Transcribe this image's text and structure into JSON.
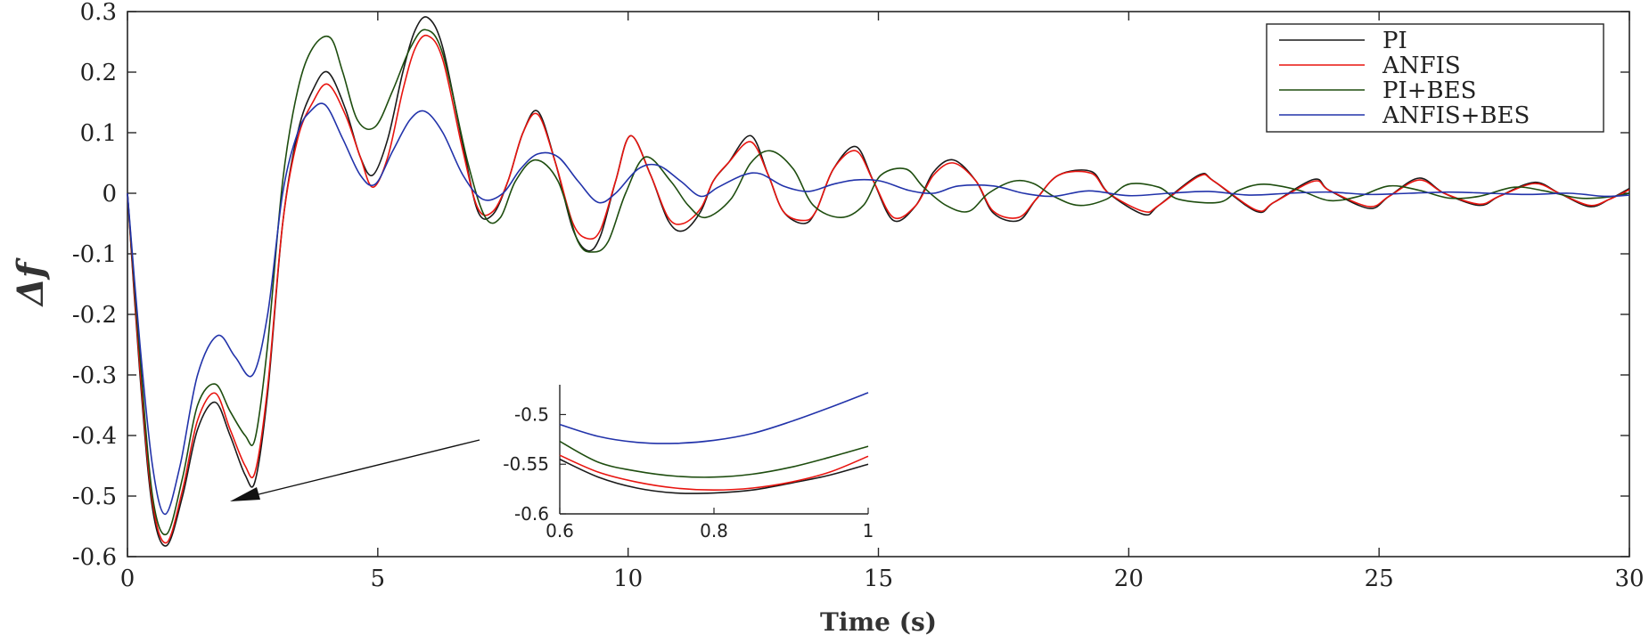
{
  "chart_data": {
    "type": "line",
    "title": "",
    "xlabel": "Time (s)",
    "ylabel": "Δf",
    "xlim": [
      0,
      30
    ],
    "ylim": [
      -0.6,
      0.3
    ],
    "xticks": [
      0,
      5,
      10,
      15,
      20,
      25,
      30
    ],
    "xtick_labels": [
      "0",
      "5",
      "10",
      "15",
      "20",
      "25",
      "30"
    ],
    "yticks": [
      0.3,
      0.2,
      0.1,
      0,
      -0.1,
      -0.2,
      -0.3,
      -0.4,
      -0.5,
      -0.6
    ],
    "ytick_labels": [
      "0.3",
      "0.2",
      "0.1",
      "0",
      "-0.1",
      "-0.2",
      "-0.3",
      "-0.4",
      "-0.5",
      "-0.6"
    ],
    "legend_position": "top-right",
    "series": [
      {
        "name": "PI",
        "color": "#1a1a1a",
        "x": [
          0,
          0.25,
          0.5,
          0.78,
          1.1,
          1.4,
          1.75,
          2.05,
          2.35,
          2.55,
          2.8,
          3.1,
          3.4,
          3.7,
          4.0,
          4.35,
          4.65,
          4.9,
          5.2,
          5.5,
          5.75,
          6.0,
          6.3,
          6.7,
          7.0,
          7.3,
          7.6,
          7.9,
          8.2,
          8.55,
          8.9,
          9.2,
          9.45,
          9.75,
          10.05,
          10.45,
          10.8,
          11.1,
          11.45,
          11.7,
          12.0,
          12.45,
          12.8,
          13.1,
          13.5,
          13.75,
          14.1,
          14.55,
          14.9,
          15.3,
          15.75,
          16.1,
          16.5,
          16.95,
          17.3,
          17.8,
          18.15,
          18.6,
          19.25,
          19.6,
          20.3,
          20.6,
          21.4,
          21.7,
          22.55,
          22.9,
          23.7,
          24.0,
          24.8,
          25.2,
          25.8,
          26.3,
          27.0,
          27.4,
          28.1,
          28.6,
          29.2,
          29.6,
          30
        ],
        "values": [
          0,
          -0.3,
          -0.52,
          -0.582,
          -0.5,
          -0.39,
          -0.345,
          -0.4,
          -0.465,
          -0.475,
          -0.33,
          -0.05,
          0.1,
          0.17,
          0.2,
          0.14,
          0.06,
          0.03,
          0.09,
          0.2,
          0.27,
          0.29,
          0.24,
          0.08,
          -0.03,
          -0.035,
          0.02,
          0.1,
          0.135,
          0.05,
          -0.06,
          -0.095,
          -0.07,
          0.02,
          0.095,
          0.03,
          -0.045,
          -0.062,
          -0.03,
          0.02,
          0.05,
          0.095,
          0.03,
          -0.03,
          -0.05,
          -0.03,
          0.04,
          0.077,
          0.02,
          -0.045,
          -0.02,
          0.035,
          0.055,
          0.02,
          -0.033,
          -0.045,
          -0.01,
          0.03,
          0.036,
          0.0,
          -0.035,
          -0.02,
          0.03,
          0.02,
          -0.03,
          -0.015,
          0.023,
          0.005,
          -0.025,
          -0.005,
          0.025,
          0.0,
          -0.02,
          -0.005,
          0.018,
          0.0,
          -0.022,
          -0.01,
          0.008
        ]
      },
      {
        "name": "ANFIS",
        "color": "#e8140f",
        "x": [
          0,
          0.25,
          0.5,
          0.78,
          1.1,
          1.4,
          1.75,
          2.05,
          2.35,
          2.55,
          2.8,
          3.1,
          3.4,
          3.7,
          4.0,
          4.35,
          4.65,
          4.9,
          5.2,
          5.5,
          5.75,
          6.0,
          6.3,
          6.7,
          7.0,
          7.3,
          7.6,
          7.9,
          8.2,
          8.55,
          8.9,
          9.2,
          9.45,
          9.75,
          10.05,
          10.45,
          10.8,
          11.1,
          11.45,
          11.7,
          12.0,
          12.45,
          12.8,
          13.1,
          13.5,
          13.75,
          14.1,
          14.55,
          14.9,
          15.3,
          15.75,
          16.1,
          16.5,
          16.95,
          17.3,
          17.8,
          18.15,
          18.6,
          19.25,
          19.6,
          20.3,
          20.6,
          21.4,
          21.7,
          22.55,
          22.9,
          23.7,
          24.0,
          24.8,
          25.2,
          25.8,
          26.3,
          27.0,
          27.4,
          28.1,
          28.6,
          29.2,
          29.6,
          30
        ],
        "values": [
          0,
          -0.29,
          -0.51,
          -0.577,
          -0.49,
          -0.375,
          -0.33,
          -0.39,
          -0.45,
          -0.46,
          -0.32,
          -0.05,
          0.09,
          0.15,
          0.18,
          0.13,
          0.06,
          0.01,
          0.06,
          0.17,
          0.24,
          0.26,
          0.22,
          0.07,
          -0.025,
          -0.03,
          0.02,
          0.1,
          0.13,
          0.05,
          -0.05,
          -0.075,
          -0.06,
          0.02,
          0.095,
          0.03,
          -0.04,
          -0.05,
          -0.025,
          0.02,
          0.05,
          0.085,
          0.03,
          -0.03,
          -0.045,
          -0.03,
          0.04,
          0.07,
          0.02,
          -0.04,
          -0.02,
          0.03,
          0.05,
          0.02,
          -0.03,
          -0.04,
          -0.01,
          0.03,
          0.033,
          0.0,
          -0.03,
          -0.02,
          0.028,
          0.02,
          -0.028,
          -0.015,
          0.02,
          0.005,
          -0.022,
          -0.005,
          0.022,
          0.0,
          -0.018,
          -0.005,
          0.016,
          0.0,
          -0.02,
          -0.01,
          0.006
        ]
      },
      {
        "name": "PI+BES",
        "color": "#1e4d0f",
        "x": [
          0,
          0.25,
          0.5,
          0.78,
          1.1,
          1.4,
          1.75,
          2.05,
          2.35,
          2.55,
          2.8,
          3.1,
          3.4,
          3.7,
          4.05,
          4.3,
          4.6,
          4.95,
          5.3,
          5.65,
          5.95,
          6.3,
          6.8,
          7.15,
          7.45,
          7.75,
          8.15,
          8.6,
          9.0,
          9.3,
          9.6,
          9.95,
          10.35,
          10.85,
          11.2,
          11.55,
          12.05,
          12.45,
          12.85,
          13.3,
          13.7,
          14.25,
          14.7,
          15.05,
          15.55,
          15.9,
          16.35,
          16.8,
          17.2,
          17.7,
          18.1,
          18.5,
          19.0,
          19.55,
          20.0,
          20.6,
          21.0,
          21.8,
          22.2,
          22.7,
          23.4,
          24.0,
          24.6,
          25.2,
          25.8,
          26.4,
          27.0,
          27.7,
          28.3,
          29.0,
          29.6,
          30
        ],
        "values": [
          0,
          -0.27,
          -0.5,
          -0.563,
          -0.47,
          -0.35,
          -0.315,
          -0.36,
          -0.4,
          -0.405,
          -0.25,
          0.02,
          0.17,
          0.24,
          0.257,
          0.2,
          0.12,
          0.11,
          0.17,
          0.24,
          0.27,
          0.23,
          0.05,
          -0.04,
          -0.04,
          0.02,
          0.055,
          0.02,
          -0.08,
          -0.097,
          -0.08,
          0.0,
          0.06,
          0.02,
          -0.02,
          -0.04,
          -0.01,
          0.05,
          0.07,
          0.04,
          -0.02,
          -0.04,
          -0.02,
          0.03,
          0.04,
          0.01,
          -0.02,
          -0.03,
          0.0,
          0.02,
          0.016,
          -0.005,
          -0.02,
          -0.01,
          0.015,
          0.01,
          -0.01,
          -0.015,
          0.005,
          0.015,
          0.005,
          -0.012,
          -0.005,
          0.012,
          0.005,
          -0.008,
          -0.005,
          0.01,
          0.004,
          -0.008,
          -0.006,
          0.0
        ]
      },
      {
        "name": "ANFIS+BES",
        "color": "#2233aa",
        "x": [
          0,
          0.25,
          0.5,
          0.75,
          1.05,
          1.4,
          1.8,
          2.15,
          2.5,
          2.8,
          3.1,
          3.4,
          3.65,
          3.95,
          4.3,
          4.65,
          4.95,
          5.3,
          5.65,
          5.95,
          6.3,
          6.7,
          7.1,
          7.5,
          7.85,
          8.2,
          8.6,
          9.0,
          9.4,
          9.75,
          10.2,
          10.6,
          11.05,
          11.45,
          11.8,
          12.3,
          12.65,
          13.1,
          13.6,
          14.1,
          14.55,
          15.05,
          15.6,
          16.1,
          16.6,
          17.3,
          17.9,
          18.5,
          19.2,
          20.0,
          20.8,
          21.6,
          22.4,
          23.2,
          24.0,
          24.8,
          25.6,
          26.4,
          27.2,
          28.0,
          28.8,
          29.5,
          30
        ],
        "values": [
          0,
          -0.25,
          -0.45,
          -0.53,
          -0.45,
          -0.3,
          -0.235,
          -0.27,
          -0.3,
          -0.2,
          0.0,
          0.1,
          0.135,
          0.146,
          0.09,
          0.03,
          0.015,
          0.07,
          0.122,
          0.135,
          0.1,
          0.03,
          -0.01,
          0.0,
          0.04,
          0.065,
          0.06,
          0.02,
          -0.015,
          0.0,
          0.04,
          0.046,
          0.02,
          -0.005,
          0.01,
          0.03,
          0.032,
          0.012,
          0.003,
          0.015,
          0.022,
          0.02,
          0.005,
          0.0,
          0.012,
          0.012,
          0.0,
          -0.005,
          0.004,
          -0.004,
          0.0,
          0.003,
          -0.003,
          0.0,
          0.002,
          -0.002,
          0.0,
          0.002,
          0.0,
          -0.002,
          0.0,
          -0.005,
          -0.003
        ]
      }
    ],
    "inset": {
      "xlim": [
        0.6,
        1.0
      ],
      "ylim": [
        -0.6,
        -0.47
      ],
      "xticks": [
        0.6,
        0.8,
        1.0
      ],
      "xtick_labels": [
        "0.6",
        "0.8",
        "1"
      ],
      "yticks": [
        -0.5,
        -0.55,
        -0.6
      ],
      "ytick_labels": [
        "-0.5",
        "-0.55",
        "-0.6"
      ],
      "series": [
        {
          "name": "PI",
          "color": "#1a1a1a",
          "x": [
            0.6,
            0.65,
            0.7,
            0.75,
            0.8,
            0.85,
            0.9,
            0.95,
            1.0
          ],
          "values": [
            -0.545,
            -0.563,
            -0.574,
            -0.579,
            -0.579,
            -0.576,
            -0.569,
            -0.561,
            -0.55
          ]
        },
        {
          "name": "ANFIS",
          "color": "#e8140f",
          "x": [
            0.6,
            0.65,
            0.7,
            0.75,
            0.8,
            0.85,
            0.9,
            0.95,
            1.0
          ],
          "values": [
            -0.541,
            -0.558,
            -0.568,
            -0.574,
            -0.576,
            -0.574,
            -0.568,
            -0.558,
            -0.542
          ]
        },
        {
          "name": "PI+BES",
          "color": "#1e4d0f",
          "x": [
            0.6,
            0.65,
            0.7,
            0.75,
            0.8,
            0.85,
            0.9,
            0.95,
            1.0
          ],
          "values": [
            -0.527,
            -0.548,
            -0.557,
            -0.562,
            -0.563,
            -0.56,
            -0.553,
            -0.543,
            -0.532
          ]
        },
        {
          "name": "ANFIS+BES",
          "color": "#2233aa",
          "x": [
            0.6,
            0.65,
            0.7,
            0.75,
            0.8,
            0.85,
            0.9,
            0.95,
            1.0
          ],
          "values": [
            -0.51,
            -0.522,
            -0.528,
            -0.529,
            -0.526,
            -0.519,
            -0.507,
            -0.493,
            -0.478
          ]
        }
      ]
    }
  }
}
